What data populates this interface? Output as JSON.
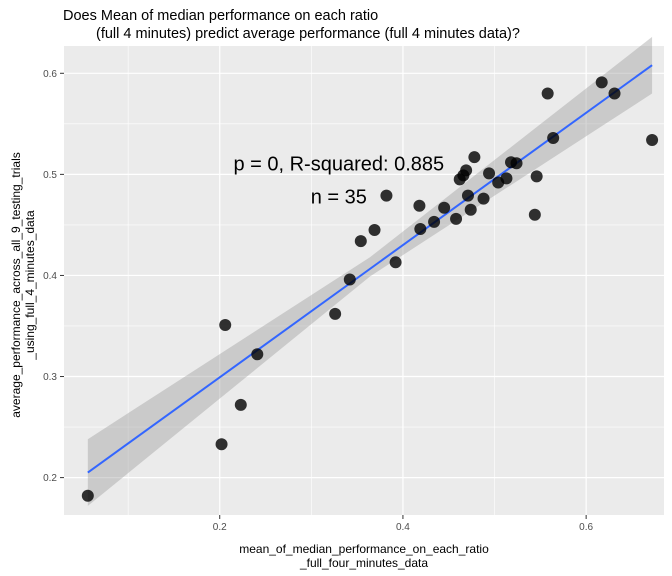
{
  "chart_data": {
    "type": "scatter",
    "title_lines": [
      "Does Mean of median performance on each ratio",
      "(full 4 minutes) predict average performance (full 4 minutes data)?"
    ],
    "xlabel_lines": [
      "mean_of_median_performance_on_each_ratio",
      "_full_four_minutes_data"
    ],
    "ylabel_lines": [
      "average_performance_across_all_9_testing_trials",
      "_using_full_4_minutes_data"
    ],
    "xlim": [
      0.03,
      0.685
    ],
    "ylim": [
      0.163,
      0.627
    ],
    "x_ticks": [
      0.2,
      0.4,
      0.6
    ],
    "x_tick_labels": [
      "0.2",
      "0.4",
      "0.6"
    ],
    "y_ticks": [
      0.2,
      0.3,
      0.4,
      0.5,
      0.6
    ],
    "y_tick_labels": [
      "0.2",
      "0.3",
      "0.4",
      "0.5",
      "0.6"
    ],
    "grid": true,
    "points": [
      {
        "x": 0.056,
        "y": 0.182
      },
      {
        "x": 0.202,
        "y": 0.233
      },
      {
        "x": 0.206,
        "y": 0.351
      },
      {
        "x": 0.223,
        "y": 0.272
      },
      {
        "x": 0.241,
        "y": 0.322
      },
      {
        "x": 0.326,
        "y": 0.362
      },
      {
        "x": 0.342,
        "y": 0.396
      },
      {
        "x": 0.354,
        "y": 0.434
      },
      {
        "x": 0.369,
        "y": 0.445
      },
      {
        "x": 0.382,
        "y": 0.479
      },
      {
        "x": 0.392,
        "y": 0.413
      },
      {
        "x": 0.418,
        "y": 0.469
      },
      {
        "x": 0.419,
        "y": 0.446
      },
      {
        "x": 0.434,
        "y": 0.453
      },
      {
        "x": 0.445,
        "y": 0.467
      },
      {
        "x": 0.458,
        "y": 0.456
      },
      {
        "x": 0.462,
        "y": 0.495
      },
      {
        "x": 0.466,
        "y": 0.499
      },
      {
        "x": 0.469,
        "y": 0.504
      },
      {
        "x": 0.471,
        "y": 0.479
      },
      {
        "x": 0.474,
        "y": 0.465
      },
      {
        "x": 0.478,
        "y": 0.517
      },
      {
        "x": 0.488,
        "y": 0.476
      },
      {
        "x": 0.494,
        "y": 0.501
      },
      {
        "x": 0.504,
        "y": 0.492
      },
      {
        "x": 0.513,
        "y": 0.496
      },
      {
        "x": 0.518,
        "y": 0.512
      },
      {
        "x": 0.524,
        "y": 0.511
      },
      {
        "x": 0.544,
        "y": 0.46
      },
      {
        "x": 0.546,
        "y": 0.498
      },
      {
        "x": 0.558,
        "y": 0.58
      },
      {
        "x": 0.564,
        "y": 0.536
      },
      {
        "x": 0.617,
        "y": 0.591
      },
      {
        "x": 0.631,
        "y": 0.58
      },
      {
        "x": 0.672,
        "y": 0.534
      }
    ],
    "fit_line": {
      "x": [
        0.056,
        0.672
      ],
      "y": [
        0.205,
        0.608
      ],
      "color": "#3366ff",
      "ci_band": {
        "x": [
          0.056,
          0.364,
          0.672
        ],
        "lower": [
          0.172,
          0.399,
          0.58
        ],
        "upper": [
          0.238,
          0.418,
          0.636
        ],
        "color": "#999999"
      }
    },
    "annotations": [
      {
        "text": "p = 0, R-squared:  0.885",
        "x": 0.33,
        "y": 0.511
      },
      {
        "text": "n = 35",
        "x": 0.33,
        "y": 0.478
      }
    ],
    "panel_background": "#ebebeb",
    "point_color": "#000000"
  }
}
